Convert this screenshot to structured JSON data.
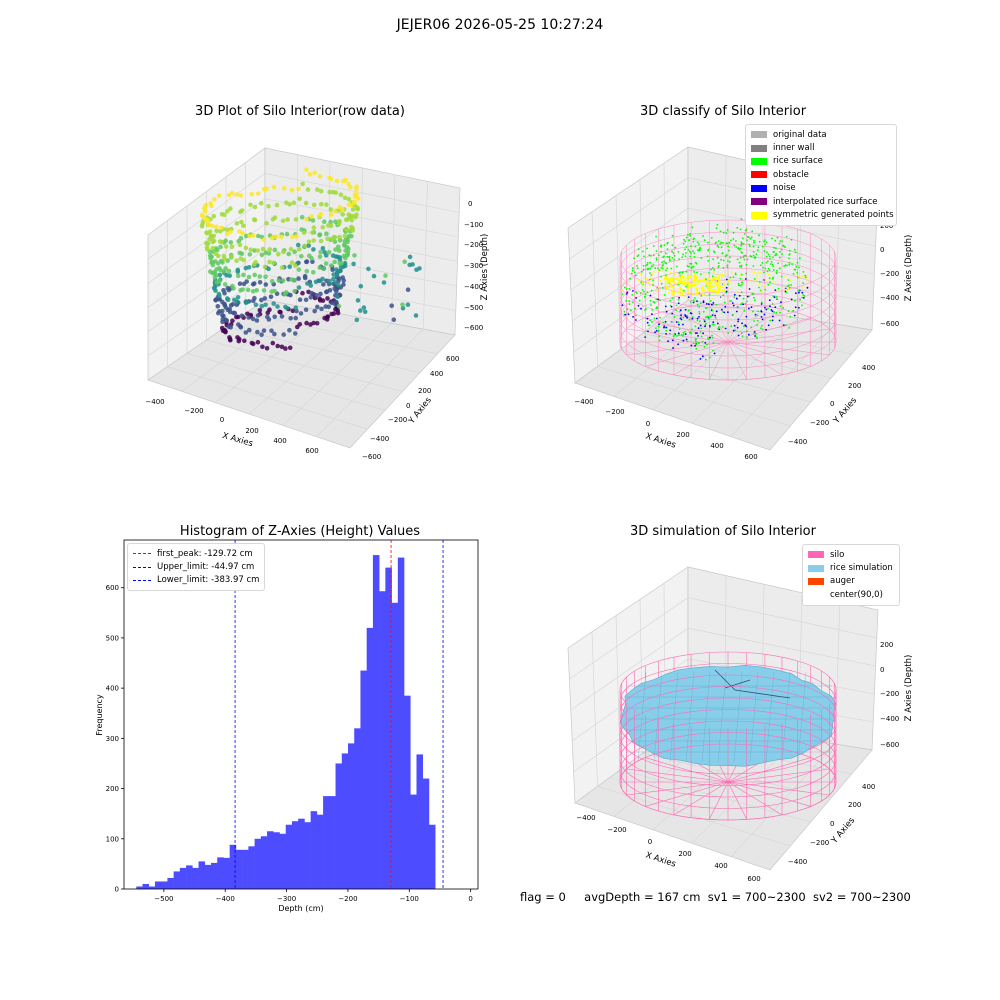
{
  "suptitle": "JEJER06 2026-05-25 10:27:24",
  "footer": {
    "flag": "flag = 0",
    "avg_depth": "avgDepth = 167 cm",
    "sv1": "sv1 = 700~2300",
    "sv2": "sv2 = 700~2300"
  },
  "colors": {
    "histogram_bar": "#4d4dff",
    "first_peak_line": "#ff0000",
    "limit_lines": "#0000ff",
    "silo": "#ff69b4",
    "rice_simulation": "#87ceeb",
    "auger": "#ff4500"
  },
  "chart_data": [
    {
      "type": "scatter",
      "projection": "3d",
      "title": "3D Plot of Silo Interior(row data)",
      "xlabel": "X Axies",
      "ylabel": "Y Axies",
      "zlabel": "Z Axies (Depth)",
      "x_ticks": [
        "−400",
        "−200",
        "0",
        "200",
        "400",
        "600"
      ],
      "y_ticks": [
        "−600",
        "−400",
        "−200",
        "0",
        "200",
        "400",
        "600"
      ],
      "z_ticks": [
        "0",
        "−100",
        "−200",
        "−300",
        "−400",
        "−500",
        "−600"
      ],
      "zlim": [
        -650,
        30
      ],
      "colormap": "viridis"
    },
    {
      "type": "scatter",
      "projection": "3d",
      "title": "3D classify of Silo Interior",
      "xlabel": "X Axies",
      "ylabel": "Y Axies",
      "zlabel": "Z Axies (Depth)",
      "x_ticks": [
        "−400",
        "−200",
        "0",
        "200",
        "400",
        "600"
      ],
      "y_ticks": [
        "−400",
        "−200",
        "0",
        "200",
        "400"
      ],
      "z_ticks": [
        "200",
        "0",
        "−200",
        "−400",
        "−600"
      ],
      "legend_position": "top-right",
      "legend": [
        {
          "label": "original data",
          "color": "#b0b0b0"
        },
        {
          "label": "inner wall",
          "color": "#808080"
        },
        {
          "label": "rice surface",
          "color": "#00ff00"
        },
        {
          "label": "obstacle",
          "color": "#ff0000"
        },
        {
          "label": "noise",
          "color": "#0000ff"
        },
        {
          "label": "interpolated rice surface",
          "color": "#800080"
        },
        {
          "label": "symmetric generated points",
          "color": "#ffff00"
        }
      ]
    },
    {
      "type": "bar",
      "title": "Histogram of Z-Axies (Height) Values",
      "xlabel": "Depth (cm)",
      "ylabel": "Frequency",
      "xlim": [
        -565,
        12
      ],
      "ylim": [
        0,
        695
      ],
      "x_ticks": [
        -500,
        -400,
        -300,
        -200,
        -100,
        0
      ],
      "y_ticks": [
        0,
        100,
        200,
        300,
        400,
        500,
        600
      ],
      "bin_width": 10.15,
      "bin_start": -545,
      "values": [
        5,
        10,
        5,
        15,
        15,
        22,
        35,
        42,
        47,
        42,
        55,
        48,
        52,
        63,
        62,
        88,
        78,
        78,
        85,
        100,
        105,
        115,
        113,
        110,
        128,
        135,
        140,
        133,
        155,
        148,
        185,
        185,
        250,
        270,
        290,
        320,
        435,
        520,
        665,
        593,
        640,
        570,
        660,
        385,
        188,
        268,
        220,
        128
      ],
      "vlines": [
        {
          "label": "first_peak: -129.72 cm",
          "x": -129.72,
          "color": "#ff0000"
        },
        {
          "label": "Upper_limit: -44.97 cm",
          "x": -44.97,
          "color": "#0000ff"
        },
        {
          "label": "Lower_limit: -383.97 cm",
          "x": -383.97,
          "color": "#0000ff"
        }
      ],
      "legend_position": "top-left"
    },
    {
      "type": "surface",
      "projection": "3d",
      "title": "3D simulation of Silo Interior",
      "xlabel": "X Axies",
      "ylabel": "Y Axies",
      "zlabel": "Z Axies (Depth)",
      "x_ticks": [
        "−400",
        "−200",
        "0",
        "200",
        "400",
        "600"
      ],
      "y_ticks": [
        "−400",
        "−200",
        "0",
        "200",
        "400"
      ],
      "z_ticks": [
        "200",
        "0",
        "−200",
        "−400",
        "−600"
      ],
      "legend_position": "top-right",
      "legend": [
        {
          "label": "silo",
          "color": "#ff69b4"
        },
        {
          "label": "rice simulation",
          "color": "#87ceeb"
        },
        {
          "label": "auger",
          "color": "#ff4500"
        },
        {
          "label": "center(90,0)",
          "color": ""
        }
      ]
    }
  ]
}
